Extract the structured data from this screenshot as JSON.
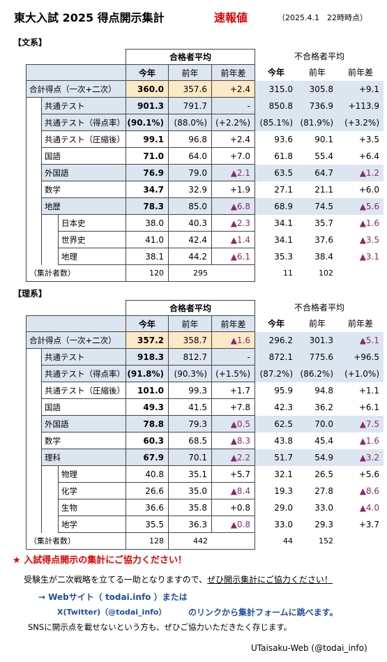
{
  "header": {
    "title": "東大入試 2025 得点開示集計",
    "badge": "速報値",
    "timestamp": "（2025.4.1　22時時点）"
  },
  "bunkei": {
    "label": "【文系】",
    "pass_header": "合格者平均",
    "fail_header": "不合格者平均",
    "col_this": "今年",
    "col_prev": "前年",
    "col_diff": "前年差",
    "rows": [
      {
        "label": "合計得点（一次+二次）",
        "p": "360.0",
        "pp": "357.6",
        "pd": "+2.4",
        "f": "315.0",
        "fp": "305.8",
        "fd": "+9.1"
      },
      {
        "label": "共通テスト",
        "p": "901.3",
        "pp": "791.7",
        "pd": "-",
        "f": "850.8",
        "fp": "736.9",
        "fd": "+113.9"
      },
      {
        "label": "共通テスト（得点率）",
        "p": "(90.1%)",
        "pp": "(88.0%)",
        "pd": "(+2.2%)",
        "f": "(85.1%)",
        "fp": "(81.9%)",
        "fd": "(+3.2%)"
      },
      {
        "label": "共通テスト（圧縮後）",
        "p": "99.1",
        "pp": "96.8",
        "pd": "+2.4",
        "f": "93.6",
        "fp": "90.1",
        "fd": "+3.5"
      },
      {
        "label": "国語",
        "p": "71.0",
        "pp": "64.0",
        "pd": "+7.0",
        "f": "61.8",
        "fp": "55.4",
        "fd": "+6.4"
      },
      {
        "label": "外国語",
        "p": "76.9",
        "pp": "79.0",
        "pd": "▲2.1",
        "f": "63.5",
        "fp": "64.7",
        "fd": "▲1.2"
      },
      {
        "label": "数学",
        "p": "34.7",
        "pp": "32.9",
        "pd": "+1.9",
        "f": "27.1",
        "fp": "21.1",
        "fd": "+6.0"
      },
      {
        "label": "地歴",
        "p": "78.3",
        "pp": "85.0",
        "pd": "▲6.8",
        "f": "68.9",
        "fp": "74.5",
        "fd": "▲5.6"
      },
      {
        "label": "日本史",
        "p": "38.0",
        "pp": "40.3",
        "pd": "▲2.3",
        "f": "34.1",
        "fp": "35.7",
        "fd": "▲1.6"
      },
      {
        "label": "世界史",
        "p": "41.0",
        "pp": "42.4",
        "pd": "▲1.4",
        "f": "34.1",
        "fp": "37.6",
        "fd": "▲3.5"
      },
      {
        "label": "地理",
        "p": "38.1",
        "pp": "44.2",
        "pd": "▲6.1",
        "f": "35.3",
        "fp": "38.4",
        "fd": "▲3.1"
      }
    ],
    "count_label": "（集計者数）",
    "count": {
      "p": "120",
      "pp": "295",
      "f": "11",
      "fp": "102"
    }
  },
  "rikei": {
    "label": "【理系】",
    "pass_header": "合格者平均",
    "fail_header": "不合格者平均",
    "col_this": "今年",
    "col_prev": "前年",
    "col_diff": "前年差",
    "rows": [
      {
        "label": "合計得点（一次+二次）",
        "p": "357.2",
        "pp": "358.7",
        "pd": "▲1.6",
        "f": "296.2",
        "fp": "301.3",
        "fd": "▲5.1"
      },
      {
        "label": "共通テスト",
        "p": "918.3",
        "pp": "812.7",
        "pd": "-",
        "f": "872.1",
        "fp": "775.6",
        "fd": "+96.5"
      },
      {
        "label": "共通テスト（得点率）",
        "p": "(91.8%)",
        "pp": "(90.3%)",
        "pd": "(+1.5%)",
        "f": "(87.2%)",
        "fp": "(86.2%)",
        "fd": "(+1.0%)"
      },
      {
        "label": "共通テスト（圧縮後）",
        "p": "101.0",
        "pp": "99.3",
        "pd": "+1.7",
        "f": "95.9",
        "fp": "94.8",
        "fd": "+1.1"
      },
      {
        "label": "国語",
        "p": "49.3",
        "pp": "41.5",
        "pd": "+7.8",
        "f": "42.3",
        "fp": "36.2",
        "fd": "+6.1"
      },
      {
        "label": "外国語",
        "p": "78.8",
        "pp": "79.3",
        "pd": "▲0.5",
        "f": "62.5",
        "fp": "70.0",
        "fd": "▲7.5"
      },
      {
        "label": "数学",
        "p": "60.3",
        "pp": "68.5",
        "pd": "▲8.3",
        "f": "43.8",
        "fp": "45.4",
        "fd": "▲1.6"
      },
      {
        "label": "理科",
        "p": "67.9",
        "pp": "70.1",
        "pd": "▲2.2",
        "f": "51.7",
        "fp": "54.9",
        "fd": "▲3.2"
      },
      {
        "label": "物理",
        "p": "40.8",
        "pp": "35.1",
        "pd": "+5.7",
        "f": "32.1",
        "fp": "26.5",
        "fd": "+5.6"
      },
      {
        "label": "化学",
        "p": "26.6",
        "pp": "35.0",
        "pd": "▲8.4",
        "f": "19.3",
        "fp": "27.8",
        "fd": "▲8.6"
      },
      {
        "label": "生物",
        "p": "36.6",
        "pp": "35.8",
        "pd": "+0.8",
        "f": "29.0",
        "fp": "33.0",
        "fd": "▲4.0"
      },
      {
        "label": "地学",
        "p": "35.5",
        "pp": "36.3",
        "pd": "▲0.8",
        "f": "33.0",
        "fp": "29.3",
        "fd": "+3.7"
      }
    ],
    "count_label": "（集計者数）",
    "count": {
      "p": "128",
      "pp": "442",
      "f": "44",
      "fp": "152"
    }
  },
  "footer": {
    "star": "★",
    "headline": "入試得点開示の集計にご協力ください！",
    "line1_a": "受験生が二次戦略を立てる一助となりますので、",
    "line1_b": "ぜひ開示集計にご協力ください！",
    "link1": "→ Webサイト（ todai.info ）または",
    "link2": "X(Twitter)（@todai_info）",
    "link2b": "のリンクから集計フォームに跳べます。",
    "note": "SNSに開示点を載せないという方も、ぜひご協力いただきたく存じます。",
    "credit": "UTaisaku-Web (@todai_info)"
  }
}
